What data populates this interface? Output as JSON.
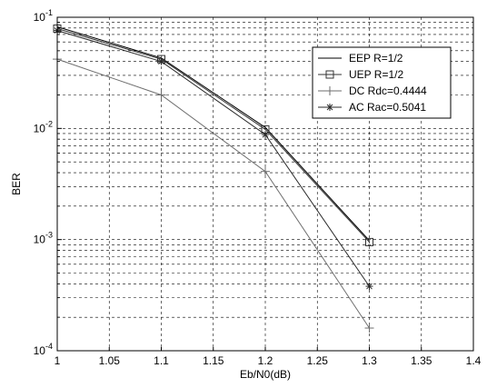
{
  "chart_data": {
    "type": "line",
    "xlabel": "Eb/N0(dB)",
    "ylabel": "BER",
    "xlim": [
      1,
      1.4
    ],
    "ylim": [
      0.0001,
      0.1
    ],
    "yscale": "log",
    "grid": "major and minor, dashed",
    "legend_position": "top-right",
    "x_ticks": [
      "1",
      "1.05",
      "1.1",
      "1.15",
      "1.2",
      "1.25",
      "1.3",
      "1.35",
      "1.4"
    ],
    "y_ticks": [
      {
        "base": "10",
        "exp": "-4",
        "value": 0.0001
      },
      {
        "base": "10",
        "exp": "-3",
        "value": 0.001
      },
      {
        "base": "10",
        "exp": "-2",
        "value": 0.01
      },
      {
        "base": "10",
        "exp": "-1",
        "value": 0.1
      }
    ],
    "x": [
      1,
      1.1,
      1.2,
      1.3
    ],
    "series": [
      {
        "name": "EEP R=1/2",
        "marker": "none",
        "values": [
          0.082,
          0.043,
          0.0102,
          0.00098
        ]
      },
      {
        "name": "UEP R=1/2",
        "marker": "square",
        "values": [
          0.079,
          0.042,
          0.0098,
          0.00095
        ]
      },
      {
        "name": "DC Rdc=0.4444",
        "marker": "plus",
        "values": [
          0.042,
          0.02,
          0.0041,
          0.00016
        ]
      },
      {
        "name": "AC Rac=0.5041",
        "marker": "star",
        "values": [
          0.076,
          0.04,
          0.0088,
          0.00038
        ]
      }
    ]
  }
}
